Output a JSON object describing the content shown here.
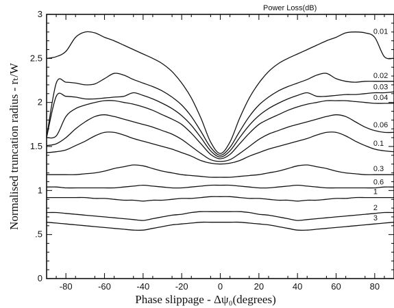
{
  "chart_data": {
    "type": "line",
    "title": "",
    "legend_title": "Power Loss(dB)",
    "xlabel": "Phase slippage - Δψ₀(degrees)",
    "ylabel": "Normalised truncation radius - rₜ/W",
    "xlim": [
      -90,
      90
    ],
    "ylim": [
      0,
      3
    ],
    "x_ticks": [
      -80,
      -60,
      -40,
      -20,
      0,
      20,
      40,
      60,
      80
    ],
    "x_tick_labels": [
      "-80",
      "-60",
      "-40",
      "-20",
      "0",
      "20",
      "40",
      "60",
      "80"
    ],
    "y_ticks": [
      0,
      0.5,
      1,
      1.5,
      2,
      2.5,
      3
    ],
    "y_tick_labels": [
      "0",
      ".5",
      "1",
      "1.5",
      "2",
      "2.5",
      "3"
    ],
    "grid": false,
    "legend_placement": "right",
    "x": [
      -90,
      -85,
      -80,
      -75,
      -70,
      -65,
      -60,
      -55,
      -50,
      -45,
      -40,
      -35,
      -30,
      -25,
      -20,
      -15,
      -10,
      -5,
      0,
      5,
      10,
      15,
      20,
      25,
      30,
      35,
      40,
      45,
      50,
      55,
      60,
      65,
      70,
      75,
      80,
      85,
      90
    ],
    "series": [
      {
        "name": "0.01",
        "values": [
          2.5,
          2.52,
          2.58,
          2.74,
          2.8,
          2.79,
          2.74,
          2.7,
          2.65,
          2.6,
          2.55,
          2.5,
          2.44,
          2.35,
          2.22,
          2.05,
          1.82,
          1.55,
          1.42,
          1.55,
          1.82,
          2.05,
          2.22,
          2.35,
          2.44,
          2.5,
          2.55,
          2.6,
          2.65,
          2.7,
          2.74,
          2.79,
          2.8,
          2.79,
          2.74,
          2.52,
          2.5
        ]
      },
      {
        "name": "0.02",
        "values": [
          1.6,
          2.22,
          2.23,
          2.22,
          2.2,
          2.21,
          2.27,
          2.33,
          2.31,
          2.26,
          2.22,
          2.18,
          2.13,
          2.06,
          1.97,
          1.84,
          1.67,
          1.49,
          1.4,
          1.49,
          1.67,
          1.84,
          1.97,
          2.06,
          2.13,
          2.18,
          2.22,
          2.26,
          2.31,
          2.33,
          2.27,
          2.24,
          2.23,
          2.24,
          2.24,
          2.24,
          2.24
        ]
      },
      {
        "name": "0.03",
        "values": [
          1.6,
          2.07,
          2.07,
          2.06,
          2.04,
          2.04,
          2.05,
          2.06,
          2.07,
          2.11,
          2.08,
          2.04,
          1.99,
          1.93,
          1.85,
          1.74,
          1.6,
          1.45,
          1.38,
          1.45,
          1.6,
          1.74,
          1.85,
          1.93,
          1.99,
          2.04,
          2.08,
          2.11,
          2.07,
          2.07,
          2.08,
          2.09,
          2.09,
          2.1,
          2.11,
          2.11,
          2.12
        ]
      },
      {
        "name": "0.04",
        "values": [
          1.6,
          1.62,
          1.84,
          1.93,
          1.97,
          2.0,
          2.02,
          2.02,
          2.0,
          1.98,
          1.95,
          1.91,
          1.86,
          1.81,
          1.75,
          1.65,
          1.53,
          1.41,
          1.36,
          1.41,
          1.53,
          1.65,
          1.75,
          1.81,
          1.86,
          1.91,
          1.95,
          1.98,
          2.0,
          2.02,
          2.02,
          2.02,
          2.01,
          2.0,
          1.99,
          1.99,
          1.99
        ]
      },
      {
        "name": "0.06",
        "values": [
          1.51,
          1.53,
          1.6,
          1.7,
          1.78,
          1.84,
          1.86,
          1.84,
          1.81,
          1.78,
          1.75,
          1.72,
          1.68,
          1.64,
          1.58,
          1.5,
          1.42,
          1.35,
          1.33,
          1.35,
          1.42,
          1.5,
          1.58,
          1.64,
          1.68,
          1.72,
          1.75,
          1.78,
          1.81,
          1.84,
          1.86,
          1.84,
          1.78,
          1.72,
          1.68,
          1.66,
          1.66
        ]
      },
      {
        "name": "0.1",
        "values": [
          1.43,
          1.44,
          1.46,
          1.51,
          1.56,
          1.62,
          1.66,
          1.66,
          1.63,
          1.59,
          1.56,
          1.53,
          1.5,
          1.47,
          1.43,
          1.39,
          1.34,
          1.31,
          1.3,
          1.31,
          1.34,
          1.39,
          1.43,
          1.47,
          1.5,
          1.53,
          1.56,
          1.59,
          1.63,
          1.66,
          1.66,
          1.62,
          1.56,
          1.51,
          1.47,
          1.45,
          1.44
        ]
      },
      {
        "name": "0.3",
        "values": [
          1.18,
          1.18,
          1.18,
          1.18,
          1.19,
          1.2,
          1.22,
          1.25,
          1.27,
          1.29,
          1.28,
          1.25,
          1.22,
          1.2,
          1.18,
          1.17,
          1.16,
          1.15,
          1.15,
          1.15,
          1.16,
          1.17,
          1.18,
          1.2,
          1.22,
          1.25,
          1.28,
          1.29,
          1.27,
          1.25,
          1.22,
          1.2,
          1.19,
          1.18,
          1.18,
          1.18,
          1.18
        ]
      },
      {
        "name": "0.6",
        "values": [
          1.04,
          1.04,
          1.03,
          1.03,
          1.03,
          1.03,
          1.03,
          1.03,
          1.04,
          1.05,
          1.06,
          1.05,
          1.04,
          1.03,
          1.03,
          1.04,
          1.05,
          1.06,
          1.06,
          1.06,
          1.05,
          1.04,
          1.03,
          1.03,
          1.04,
          1.05,
          1.06,
          1.05,
          1.04,
          1.03,
          1.03,
          1.03,
          1.03,
          1.03,
          1.03,
          1.04,
          1.04
        ]
      },
      {
        "name": "1",
        "values": [
          0.92,
          0.92,
          0.92,
          0.92,
          0.92,
          0.91,
          0.91,
          0.9,
          0.89,
          0.89,
          0.88,
          0.89,
          0.89,
          0.9,
          0.91,
          0.91,
          0.92,
          0.93,
          0.93,
          0.93,
          0.92,
          0.91,
          0.91,
          0.9,
          0.89,
          0.89,
          0.88,
          0.89,
          0.89,
          0.9,
          0.91,
          0.91,
          0.92,
          0.92,
          0.92,
          0.92,
          0.92
        ]
      },
      {
        "name": "2",
        "values": [
          0.75,
          0.75,
          0.74,
          0.73,
          0.72,
          0.71,
          0.7,
          0.69,
          0.68,
          0.67,
          0.66,
          0.68,
          0.7,
          0.72,
          0.73,
          0.75,
          0.76,
          0.76,
          0.76,
          0.76,
          0.76,
          0.75,
          0.73,
          0.72,
          0.7,
          0.68,
          0.66,
          0.67,
          0.68,
          0.69,
          0.7,
          0.71,
          0.72,
          0.73,
          0.74,
          0.75,
          0.75
        ]
      },
      {
        "name": "3",
        "values": [
          0.64,
          0.63,
          0.62,
          0.61,
          0.6,
          0.59,
          0.58,
          0.57,
          0.56,
          0.55,
          0.55,
          0.57,
          0.59,
          0.61,
          0.62,
          0.63,
          0.64,
          0.64,
          0.64,
          0.64,
          0.64,
          0.63,
          0.62,
          0.61,
          0.59,
          0.57,
          0.55,
          0.55,
          0.56,
          0.57,
          0.58,
          0.59,
          0.6,
          0.61,
          0.62,
          0.63,
          0.64
        ]
      }
    ]
  }
}
